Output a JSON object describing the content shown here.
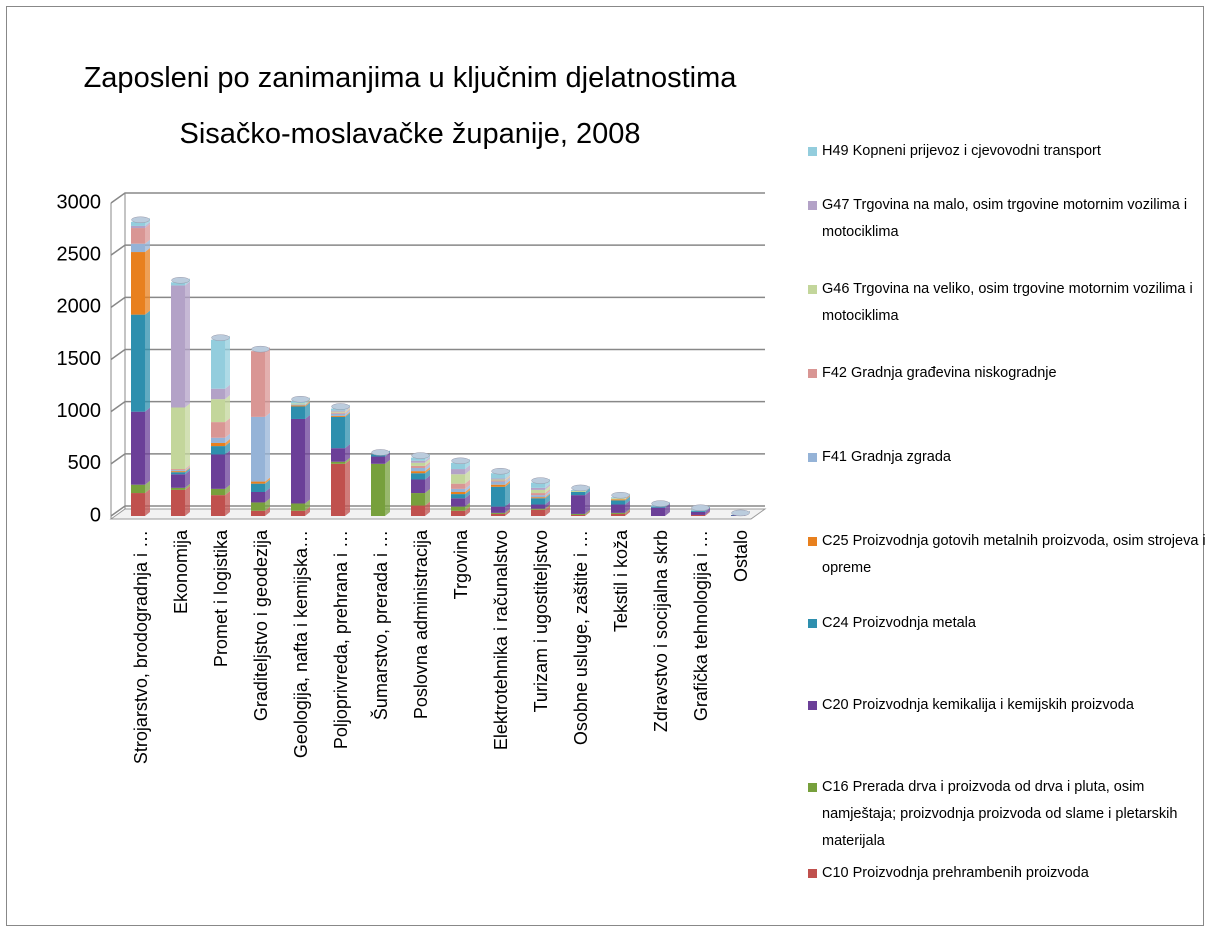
{
  "chart_data": {
    "type": "stacked_bar",
    "title": "Zaposleni po zanimanjima u ključnim djelatnostima Sisačko-moslavačke županije, 2008",
    "categories": [
      "Strojarstvo, brodogradnja i …",
      "Ekonomija",
      "Promet i logistika",
      "Graditeljstvo i geodezija",
      "Geologija, nafta i kemijska…",
      "Poljoprivreda, prehrana i …",
      "Šumarstvo, prerada i …",
      "Poslovna administracija",
      "Trgovina",
      "Elektrotehnika i računalstvo",
      "Turizam i ugostiteljstvo",
      "Osobne usluge, zaštite i …",
      "Tekstil i koža",
      "Zdravstvo i socijalna skrb",
      "Grafička tehnologija i …",
      "Ostalo"
    ],
    "ylim": [
      0,
      3000
    ],
    "yticks": [
      0,
      500,
      1000,
      1500,
      2000,
      2500,
      3000
    ],
    "grid": true,
    "series": [
      {
        "name": "C10 Proizvodnja prehrambenih proizvoda",
        "color": "#c0504d",
        "values": [
          220,
          250,
          200,
          50,
          50,
          500,
          0,
          100,
          50,
          20,
          60,
          10,
          20,
          0,
          10,
          0
        ]
      },
      {
        "name": "C16 Prerada drva i proizvoda od drva i pluta, osim namještaja; proizvodnja proizvoda od slame i pletarskih materijala",
        "color": "#77a03c",
        "values": [
          80,
          20,
          60,
          80,
          70,
          20,
          500,
          120,
          40,
          10,
          10,
          10,
          10,
          0,
          0,
          0
        ]
      },
      {
        "name": "C20 Proizvodnja kemikalija i kemijskih proizvoda",
        "color": "#6b3f98",
        "values": [
          700,
          130,
          330,
          100,
          810,
          130,
          70,
          130,
          80,
          60,
          40,
          180,
          80,
          80,
          30,
          5
        ]
      },
      {
        "name": "C24 Proizvodnja metala",
        "color": "#2e8fae",
        "values": [
          930,
          20,
          80,
          80,
          120,
          300,
          20,
          60,
          40,
          190,
          60,
          30,
          40,
          10,
          10,
          5
        ]
      },
      {
        "name": "C25 Proizvodnja gotovih metalnih proizvoda, osim strojeva i opreme",
        "color": "#e8801e",
        "values": [
          600,
          10,
          30,
          20,
          10,
          10,
          0,
          20,
          20,
          20,
          10,
          0,
          10,
          0,
          0,
          0
        ]
      },
      {
        "name": "F41 Gradnja zgrada",
        "color": "#95b3d7",
        "values": [
          80,
          10,
          50,
          620,
          10,
          20,
          0,
          30,
          30,
          30,
          20,
          0,
          0,
          0,
          0,
          0
        ]
      },
      {
        "name": "F42 Gradnja građevina niskogradnje",
        "color": "#d99694",
        "values": [
          150,
          10,
          150,
          630,
          0,
          10,
          0,
          20,
          50,
          10,
          20,
          0,
          0,
          0,
          0,
          0
        ]
      },
      {
        "name": "G46 Trgovina na veliko, osim trgovine motornim vozilima i motociklima",
        "color": "#c3d69b",
        "values": [
          0,
          590,
          220,
          0,
          10,
          10,
          0,
          30,
          90,
          10,
          30,
          10,
          10,
          0,
          0,
          0
        ]
      },
      {
        "name": "G47 Trgovina na malo, osim trgovine motornim vozilima i motociklima",
        "color": "#b3a2c7",
        "values": [
          20,
          1170,
          100,
          0,
          0,
          10,
          0,
          20,
          50,
          10,
          20,
          0,
          0,
          0,
          0,
          0
        ]
      },
      {
        "name": "H49 Kopneni prijevoz i cjevovodni transport",
        "color": "#93cddd",
        "values": [
          40,
          30,
          470,
          0,
          20,
          20,
          0,
          30,
          60,
          50,
          50,
          10,
          10,
          10,
          10,
          0
        ]
      }
    ]
  }
}
